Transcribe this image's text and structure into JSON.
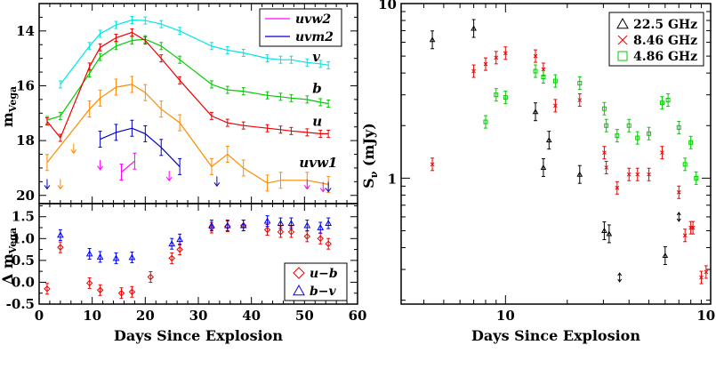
{
  "chart_data": [
    {
      "id": "top-left",
      "type": "line",
      "title": "",
      "xlabel": "",
      "ylabel": "m_Vega",
      "xlim": [
        0,
        60
      ],
      "ylim": [
        20.3,
        13.0
      ],
      "y_inverted": true,
      "yticks": [
        "14",
        "16",
        "18",
        "20"
      ],
      "legend": {
        "position": "top-right",
        "entries": [
          {
            "name": "uvw2",
            "color": "#ff00ff"
          },
          {
            "name": "uvm2",
            "color": "#0000cc"
          }
        ]
      },
      "curve_labels": [
        {
          "text": "v",
          "x": 51.5,
          "y": 14.95
        },
        {
          "text": "b",
          "x": 51.5,
          "y": 16.1
        },
        {
          "text": "u",
          "x": 51.5,
          "y": 17.3
        },
        {
          "text": "uvw1",
          "x": 49.0,
          "y": 18.8
        }
      ],
      "series": [
        {
          "name": "v",
          "color": "#00e5e5",
          "x": [
            4,
            9.5,
            11.5,
            14.5,
            17.5,
            20,
            23,
            26.5,
            32.5,
            35.5,
            38.5,
            43,
            45.5,
            47.5,
            50.5,
            53,
            54.5
          ],
          "y": [
            15.95,
            14.55,
            14.1,
            13.78,
            13.6,
            13.62,
            13.75,
            14.0,
            14.55,
            14.7,
            14.8,
            15.0,
            15.05,
            15.05,
            15.15,
            15.2,
            15.25
          ]
        },
        {
          "name": "b",
          "color": "#00cc00",
          "x": [
            1.5,
            4,
            9.5,
            11.5,
            14.5,
            17.5,
            20,
            23,
            26.5,
            32.5,
            35.5,
            38.5,
            43,
            45.5,
            47.5,
            50.5,
            53,
            54.5
          ],
          "y": [
            17.25,
            17.1,
            15.55,
            14.95,
            14.55,
            14.35,
            14.3,
            14.55,
            15.05,
            15.95,
            16.15,
            16.2,
            16.35,
            16.4,
            16.45,
            16.5,
            16.6,
            16.65
          ]
        },
        {
          "name": "u",
          "color": "#ee0000",
          "x": [
            1.5,
            4,
            9.5,
            11.5,
            14.5,
            17.5,
            20,
            23,
            26.5,
            32.5,
            35.5,
            38.5,
            43,
            45.5,
            47.5,
            50.5,
            53,
            54.5
          ],
          "y": [
            17.3,
            17.9,
            15.3,
            14.6,
            14.25,
            14.05,
            14.35,
            15.0,
            15.8,
            17.1,
            17.35,
            17.45,
            17.55,
            17.6,
            17.65,
            17.7,
            17.75,
            17.75
          ]
        },
        {
          "name": "uvw1",
          "color": "#ff8c00",
          "x": [
            1.5,
            9.5,
            11.5,
            14.5,
            17.5,
            20,
            23,
            26.5,
            32.5,
            35.5,
            38.5,
            43,
            45.5,
            50.5,
            54.5
          ],
          "y": [
            18.8,
            16.85,
            16.45,
            16.05,
            15.95,
            16.25,
            16.85,
            17.35,
            18.95,
            18.5,
            19.0,
            19.55,
            19.45,
            19.45,
            19.6
          ]
        },
        {
          "name": "uvm2",
          "color": "#0000cc",
          "x": [
            11.5,
            14.5,
            17.5,
            20,
            23,
            26.5
          ],
          "y": [
            17.95,
            17.7,
            17.55,
            17.75,
            18.25,
            18.95
          ]
        },
        {
          "name": "uvw2",
          "color": "#ff00ff",
          "x": [
            15.5,
            18
          ],
          "y": [
            19.15,
            18.75
          ]
        }
      ],
      "upper_limits": [
        {
          "name": "uvw1",
          "color": "#ff8c00",
          "x": [
            4,
            6.5
          ],
          "y": [
            19.6,
            18.3
          ]
        },
        {
          "name": "uvm2",
          "color": "#0000cc",
          "x": [
            1.5,
            33.5,
            54.5
          ],
          "y": [
            19.6,
            19.5,
            19.7
          ]
        },
        {
          "name": "uvw2",
          "color": "#ff00ff",
          "x": [
            11.5,
            24.5,
            50.5,
            53.5
          ],
          "y": [
            18.9,
            19.3,
            19.6,
            19.7
          ]
        }
      ]
    },
    {
      "id": "bottom-left",
      "type": "scatter",
      "title": "",
      "xlabel": "Days Since Explosion",
      "ylabel": "Δ m_Vega",
      "xlim": [
        0,
        60
      ],
      "ylim": [
        -0.5,
        1.8
      ],
      "xticks": [
        "0",
        "10",
        "20",
        "30",
        "40",
        "50",
        "60"
      ],
      "yticks": [
        "-0.5",
        "0.0",
        "0.5",
        "1.0",
        "1.5"
      ],
      "legend": {
        "position": "bottom-right",
        "entries": [
          {
            "name": "u−b",
            "color": "#ee0000",
            "marker": "diamond"
          },
          {
            "name": "b−v",
            "color": "#0000ff",
            "marker": "triangle"
          }
        ]
      },
      "series": [
        {
          "name": "u−b",
          "color": "#ee0000",
          "marker": "diamond",
          "x": [
            1.5,
            4,
            9.5,
            11.5,
            15.5,
            17.5,
            21,
            25,
            26.5,
            32.5,
            35.5,
            38.5,
            43,
            45.5,
            47.5,
            50.5,
            53,
            54.5
          ],
          "y": [
            -0.15,
            0.8,
            -0.02,
            -0.18,
            -0.25,
            -0.22,
            0.12,
            0.55,
            0.75,
            1.25,
            1.28,
            1.3,
            1.2,
            1.15,
            1.15,
            1.05,
            1.0,
            0.88
          ]
        },
        {
          "name": "b−v",
          "color": "#0000ff",
          "marker": "triangle",
          "x": [
            4,
            9.5,
            11.5,
            14.5,
            17.5,
            25,
            26.5,
            32.5,
            35.5,
            38.5,
            43,
            45.5,
            47.5,
            50.5,
            53,
            54.5
          ],
          "y": [
            1.08,
            0.65,
            0.58,
            0.55,
            0.57,
            0.88,
            0.98,
            1.3,
            1.3,
            1.3,
            1.4,
            1.35,
            1.35,
            1.3,
            1.25,
            1.35
          ]
        }
      ]
    },
    {
      "id": "right",
      "type": "scatter",
      "title": "",
      "xlabel": "Days Since Explosion",
      "ylabel": "S_ν (mJy)",
      "x_scale": "log",
      "y_scale": "log",
      "xlim": [
        3.1,
        100
      ],
      "ylim": [
        0.19,
        10
      ],
      "xticks": [
        "10",
        "100"
      ],
      "yticks": [
        "1",
        "10"
      ],
      "legend": {
        "position": "top-right",
        "entries": [
          {
            "name": "22.5 GHz",
            "color": "#000000",
            "marker": "triangle"
          },
          {
            "name": "8.46 GHz",
            "color": "#ee0000",
            "marker": "cross"
          },
          {
            "name": "4.86 GHz",
            "color": "#00cc00",
            "marker": "square"
          }
        ]
      },
      "series": [
        {
          "name": "22.5 GHz",
          "color": "#000000",
          "marker": "triangle",
          "x": [
            4.4,
            7.0,
            14.0,
            15.3,
            16.3,
            23.0,
            30.3,
            32.0,
            60.0
          ],
          "y": [
            6.2,
            7.2,
            2.4,
            1.15,
            1.65,
            1.05,
            0.5,
            0.48,
            0.36
          ]
        },
        {
          "name": "8.46 GHz",
          "color": "#ee0000",
          "marker": "cross",
          "x": [
            4.4,
            7.0,
            8.0,
            9.0,
            10.0,
            14.0,
            15.3,
            17.5,
            23.0,
            30.3,
            31.0,
            35.0,
            40.0,
            44.0,
            50.0,
            58.0,
            70.0,
            75.0,
            80.0,
            82.0,
            90.0,
            95.0
          ],
          "y": [
            1.2,
            4.1,
            4.5,
            4.9,
            5.2,
            5.0,
            4.2,
            2.6,
            2.8,
            1.4,
            1.15,
            0.88,
            1.05,
            1.05,
            1.05,
            1.4,
            0.83,
            0.47,
            0.52,
            0.52,
            0.27,
            0.29
          ]
        },
        {
          "name": "4.86 GHz",
          "color": "#00cc00",
          "marker": "square",
          "x": [
            8.0,
            9.0,
            10.0,
            14.0,
            15.3,
            17.5,
            23.0,
            30.3,
            31.0,
            35.0,
            40.0,
            44.0,
            50.0,
            58.0,
            62.0,
            70.0,
            75.0,
            80.0,
            85.0
          ],
          "y": [
            2.1,
            3.0,
            2.9,
            4.1,
            3.8,
            3.6,
            3.5,
            2.5,
            2.0,
            1.75,
            2.0,
            1.7,
            1.8,
            2.7,
            2.8,
            1.95,
            1.2,
            1.6,
            1.0
          ]
        }
      ],
      "upper_limits": [
        {
          "name": "22.5 GHz",
          "color": "#000000",
          "x": [
            36.0,
            70.0
          ],
          "y": [
            0.27,
            0.6
          ]
        }
      ]
    }
  ]
}
